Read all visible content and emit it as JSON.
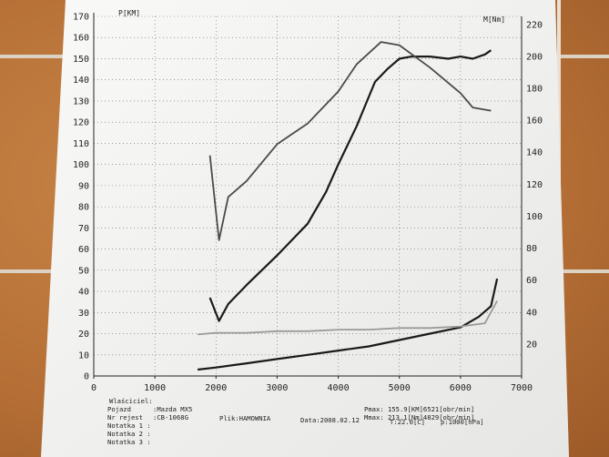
{
  "chart_data": {
    "type": "line",
    "x": {
      "ticks": [
        0,
        1000,
        2000,
        3000,
        4000,
        5000,
        6000,
        7000
      ],
      "range": [
        0,
        7000
      ]
    },
    "y_left": {
      "label": "P[KM]",
      "ticks": [
        0,
        10,
        20,
        30,
        40,
        50,
        60,
        70,
        80,
        90,
        100,
        110,
        120,
        130,
        140,
        150,
        160,
        170
      ],
      "range": [
        0,
        170
      ]
    },
    "y_right": {
      "label": "M[Nm]",
      "ticks": [
        20,
        40,
        60,
        80,
        100,
        120,
        140,
        160,
        180,
        200,
        220
      ],
      "range": [
        0,
        225
      ]
    },
    "grid": "dotted",
    "series": [
      {
        "axis": "left",
        "color": "#1a1a1a",
        "points": [
          [
            1900,
            37
          ],
          [
            2050,
            26
          ],
          [
            2200,
            34
          ],
          [
            2500,
            43
          ],
          [
            3000,
            57
          ],
          [
            3500,
            72
          ],
          [
            3800,
            87
          ],
          [
            4000,
            100
          ],
          [
            4300,
            118
          ],
          [
            4600,
            139
          ],
          [
            4800,
            145
          ],
          [
            5000,
            150
          ],
          [
            5200,
            151
          ],
          [
            5500,
            151
          ],
          [
            5800,
            150
          ],
          [
            6000,
            151
          ],
          [
            6200,
            150
          ],
          [
            6400,
            152
          ],
          [
            6500,
            154
          ]
        ]
      },
      {
        "axis": "right",
        "color": "#4a4a4a",
        "points": [
          [
            1900,
            138
          ],
          [
            2050,
            85
          ],
          [
            2200,
            112
          ],
          [
            2500,
            122
          ],
          [
            3000,
            145
          ],
          [
            3500,
            158
          ],
          [
            4000,
            178
          ],
          [
            4300,
            195
          ],
          [
            4700,
            209
          ],
          [
            5000,
            207
          ],
          [
            5500,
            193
          ],
          [
            6000,
            177
          ],
          [
            6200,
            168
          ],
          [
            6500,
            166
          ]
        ]
      },
      {
        "axis": "left",
        "color": "#1a1a1a",
        "points": [
          [
            1700,
            3
          ],
          [
            2000,
            4
          ],
          [
            2500,
            6
          ],
          [
            3000,
            8
          ],
          [
            3500,
            10
          ],
          [
            4000,
            12
          ],
          [
            4500,
            14
          ],
          [
            5000,
            17
          ],
          [
            5500,
            20
          ],
          [
            6000,
            23
          ],
          [
            6300,
            28
          ],
          [
            6500,
            33
          ],
          [
            6600,
            46
          ]
        ]
      },
      {
        "axis": "right",
        "color": "#9a9a9a",
        "points": [
          [
            1700,
            26
          ],
          [
            2000,
            27
          ],
          [
            2500,
            27
          ],
          [
            3000,
            28
          ],
          [
            3500,
            28
          ],
          [
            4000,
            29
          ],
          [
            4500,
            29
          ],
          [
            5000,
            30
          ],
          [
            5500,
            30
          ],
          [
            6000,
            31
          ],
          [
            6400,
            33
          ],
          [
            6600,
            47
          ]
        ]
      }
    ]
  },
  "info": {
    "owner": "Wlaściciel:",
    "vehicle_label": "Pojazd",
    "vehicle_value": ":Mazda MX5",
    "reg_label": "Nr rejest",
    "reg_value": ":CB-1068G",
    "file": "Plik:HAMOWNIA",
    "date": "Data:2008.02.12",
    "note1": "Notatka 1 :",
    "note2": "Notatka 2 :",
    "note3": "Notatka 3 :",
    "pmax": "Pmax: 155.9[KM]6521[obr/min]",
    "mmax": "Mmax: 213.1[Nm]4829[obr/min]",
    "temp": "T:22.0[C]",
    "pressure": "p:1000[hPa]"
  }
}
